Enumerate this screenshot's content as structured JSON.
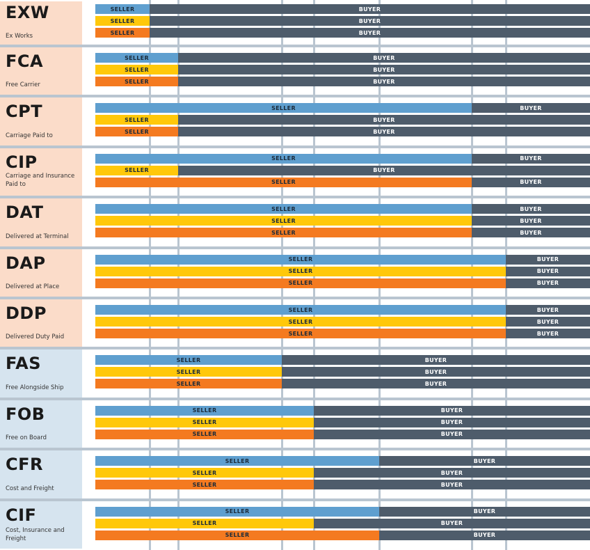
{
  "seller_label": "SELLER",
  "buyer_label": "BUYER",
  "colors": {
    "peach_panel": "#fbdcc9",
    "blue_panel": "#d6e4ef",
    "row1": "#5f9fcf",
    "row2": "#ffc80a",
    "row3": "#f47a20",
    "buyer": "#4e5c6b",
    "grid": "#b9c5d0"
  },
  "stage_count": 8,
  "terms": [
    {
      "code": "EXW",
      "name": "Ex Works",
      "group": "any",
      "seller_until_stage": [
        1,
        1,
        1
      ]
    },
    {
      "code": "FCA",
      "name": "Free Carrier",
      "group": "any",
      "seller_until_stage": [
        2,
        2,
        2
      ]
    },
    {
      "code": "CPT",
      "name": "Carriage Paid to",
      "group": "any",
      "seller_until_stage": [
        6,
        2,
        2
      ]
    },
    {
      "code": "CIP",
      "name": "Carriage and Insurance Paid to",
      "group": "any",
      "seller_until_stage": [
        6,
        2,
        6
      ]
    },
    {
      "code": "DAT",
      "name": "Delivered at Terminal",
      "group": "any",
      "seller_until_stage": [
        6,
        6,
        6
      ]
    },
    {
      "code": "DAP",
      "name": "Delivered at Place",
      "group": "any",
      "seller_until_stage": [
        7,
        7,
        7
      ]
    },
    {
      "code": "DDP",
      "name": "Delivered Duty Paid",
      "group": "any",
      "seller_until_stage": [
        7,
        7,
        7
      ]
    },
    {
      "code": "FAS",
      "name": "Free Alongside Ship",
      "group": "sea",
      "seller_until_stage": [
        3,
        3,
        3
      ]
    },
    {
      "code": "FOB",
      "name": "Free on Board",
      "group": "sea",
      "seller_until_stage": [
        4,
        4,
        4
      ]
    },
    {
      "code": "CFR",
      "name": "Cost and Freight",
      "group": "sea",
      "seller_until_stage": [
        5,
        4,
        4
      ]
    },
    {
      "code": "CIF",
      "name": "Cost, Insurance and Freight",
      "group": "sea",
      "seller_until_stage": [
        5,
        4,
        5
      ]
    }
  ]
}
